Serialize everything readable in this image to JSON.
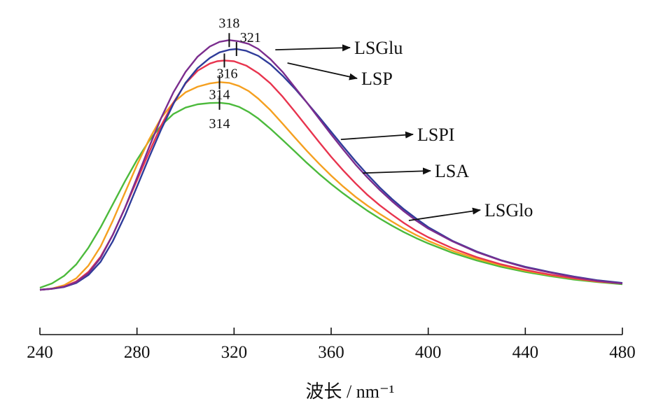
{
  "chart_data": {
    "type": "line",
    "xlabel": "波长 / nm⁻¹",
    "ylabel": "",
    "xlim": [
      240,
      480
    ],
    "ylim": [
      0,
      1
    ],
    "grid": false,
    "x_ticks": [
      "240",
      "280",
      "320",
      "360",
      "400",
      "440",
      "480"
    ],
    "series": [
      {
        "name": "LSGlu",
        "color": "#7b2d8e",
        "peak_label": "318",
        "peak_x": 318,
        "label_anchor": [
          337,
          0.942
        ],
        "x": [
          240,
          245,
          250,
          255,
          260,
          265,
          270,
          275,
          280,
          285,
          290,
          295,
          300,
          305,
          310,
          314,
          318,
          322,
          326,
          330,
          335,
          340,
          345,
          350,
          355,
          360,
          365,
          370,
          375,
          380,
          385,
          390,
          395,
          400,
          410,
          420,
          430,
          440,
          450,
          460,
          470,
          480
        ],
        "y": [
          0.0,
          0.004,
          0.012,
          0.03,
          0.065,
          0.125,
          0.215,
          0.32,
          0.44,
          0.56,
          0.675,
          0.775,
          0.855,
          0.915,
          0.955,
          0.973,
          0.98,
          0.975,
          0.965,
          0.945,
          0.905,
          0.855,
          0.795,
          0.735,
          0.672,
          0.61,
          0.55,
          0.492,
          0.44,
          0.392,
          0.348,
          0.308,
          0.272,
          0.24,
          0.19,
          0.148,
          0.115,
          0.088,
          0.068,
          0.05,
          0.035,
          0.025
        ]
      },
      {
        "name": "LSP",
        "color": "#2f3c9a",
        "peak_label": "321",
        "peak_x": 321,
        "label_anchor": [
          342,
          0.89
        ],
        "x": [
          240,
          245,
          250,
          255,
          260,
          265,
          270,
          275,
          280,
          285,
          290,
          295,
          300,
          305,
          310,
          314,
          318,
          321,
          325,
          330,
          335,
          340,
          345,
          350,
          355,
          360,
          365,
          370,
          375,
          380,
          385,
          390,
          395,
          400,
          410,
          420,
          430,
          440,
          450,
          460,
          470,
          480
        ],
        "y": [
          0.0,
          0.004,
          0.011,
          0.027,
          0.058,
          0.11,
          0.19,
          0.29,
          0.405,
          0.52,
          0.63,
          0.73,
          0.812,
          0.87,
          0.91,
          0.932,
          0.942,
          0.945,
          0.938,
          0.918,
          0.885,
          0.84,
          0.79,
          0.735,
          0.678,
          0.62,
          0.562,
          0.505,
          0.452,
          0.402,
          0.357,
          0.316,
          0.28,
          0.246,
          0.192,
          0.15,
          0.116,
          0.09,
          0.07,
          0.052,
          0.037,
          0.027
        ]
      },
      {
        "name": "LSPI",
        "color": "#e8344e",
        "peak_label": "316",
        "peak_x": 316,
        "label_anchor": [
          364,
          0.59
        ],
        "x": [
          240,
          245,
          250,
          255,
          260,
          265,
          270,
          275,
          280,
          285,
          290,
          295,
          300,
          305,
          310,
          313,
          316,
          320,
          325,
          330,
          335,
          340,
          345,
          350,
          355,
          360,
          365,
          370,
          375,
          380,
          385,
          390,
          395,
          400,
          410,
          420,
          430,
          440,
          450,
          460,
          470,
          480
        ],
        "y": [
          0.0,
          0.004,
          0.013,
          0.033,
          0.07,
          0.13,
          0.215,
          0.32,
          0.43,
          0.54,
          0.645,
          0.735,
          0.81,
          0.86,
          0.888,
          0.897,
          0.9,
          0.897,
          0.88,
          0.85,
          0.81,
          0.758,
          0.7,
          0.64,
          0.58,
          0.522,
          0.468,
          0.418,
          0.372,
          0.332,
          0.296,
          0.262,
          0.232,
          0.206,
          0.163,
          0.128,
          0.1,
          0.078,
          0.06,
          0.045,
          0.033,
          0.025
        ]
      },
      {
        "name": "LSA",
        "color": "#f5a020",
        "peak_label": "314",
        "peak_x": 314,
        "label_anchor": [
          373,
          0.458
        ],
        "x": [
          240,
          245,
          250,
          255,
          260,
          265,
          270,
          275,
          280,
          285,
          290,
          295,
          300,
          305,
          310,
          314,
          318,
          322,
          326,
          330,
          335,
          340,
          345,
          350,
          355,
          360,
          365,
          370,
          375,
          380,
          385,
          390,
          395,
          400,
          410,
          420,
          430,
          440,
          450,
          460,
          470,
          480
        ],
        "y": [
          0.0,
          0.005,
          0.018,
          0.045,
          0.095,
          0.17,
          0.27,
          0.38,
          0.49,
          0.59,
          0.675,
          0.735,
          0.775,
          0.797,
          0.81,
          0.815,
          0.812,
          0.8,
          0.78,
          0.75,
          0.705,
          0.652,
          0.598,
          0.545,
          0.495,
          0.448,
          0.405,
          0.365,
          0.33,
          0.298,
          0.268,
          0.24,
          0.215,
          0.192,
          0.153,
          0.122,
          0.096,
          0.075,
          0.058,
          0.044,
          0.032,
          0.025
        ]
      },
      {
        "name": "LSGlo",
        "color": "#4cba3c",
        "peak_label": "314",
        "peak_x": 314,
        "label_anchor": [
          392,
          0.272
        ],
        "x": [
          240,
          245,
          250,
          255,
          260,
          265,
          270,
          275,
          280,
          285,
          290,
          295,
          300,
          305,
          310,
          314,
          318,
          322,
          326,
          330,
          335,
          340,
          345,
          350,
          355,
          360,
          365,
          370,
          375,
          380,
          385,
          390,
          395,
          400,
          410,
          420,
          430,
          440,
          450,
          460,
          470,
          480
        ],
        "y": [
          0.008,
          0.025,
          0.055,
          0.1,
          0.165,
          0.245,
          0.335,
          0.425,
          0.51,
          0.585,
          0.645,
          0.69,
          0.715,
          0.728,
          0.733,
          0.734,
          0.73,
          0.718,
          0.698,
          0.672,
          0.632,
          0.588,
          0.543,
          0.498,
          0.455,
          0.415,
          0.378,
          0.343,
          0.31,
          0.28,
          0.252,
          0.226,
          0.203,
          0.182,
          0.145,
          0.115,
          0.09,
          0.07,
          0.054,
          0.04,
          0.03,
          0.022
        ]
      }
    ]
  }
}
